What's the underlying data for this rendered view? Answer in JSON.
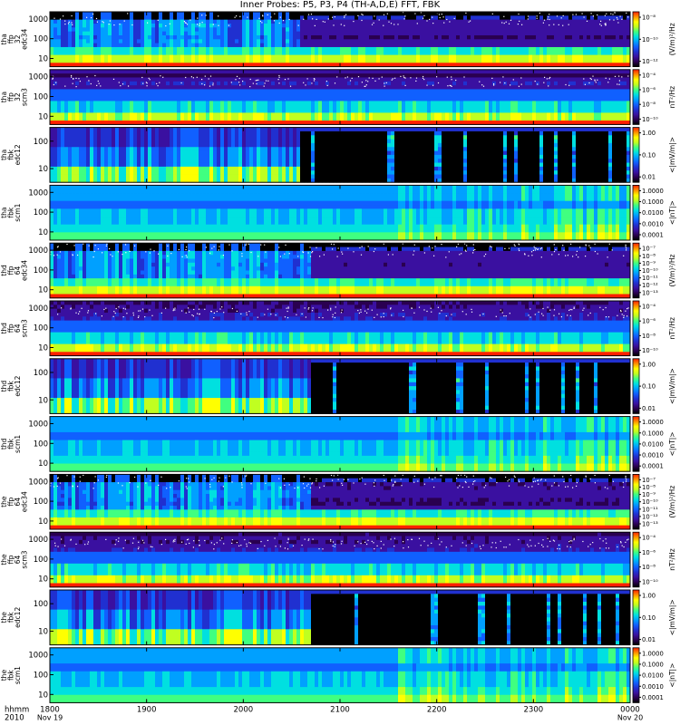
{
  "chart_data": {
    "type": "heatmap",
    "title": "Inner Probes: P5, P3, P4 (TH-A,D,E) FFT, FBK",
    "x_axis": {
      "label_line1": "hhmm",
      "label_line2": "2010",
      "range": [
        "1800",
        "0000"
      ],
      "ticks": [
        {
          "value": 0,
          "label": "1800",
          "sublabel": "Nov 19"
        },
        {
          "value": 1,
          "label": "1900",
          "sublabel": ""
        },
        {
          "value": 2,
          "label": "2000",
          "sublabel": ""
        },
        {
          "value": 3,
          "label": "2100",
          "sublabel": ""
        },
        {
          "value": 4,
          "label": "2200",
          "sublabel": ""
        },
        {
          "value": 5,
          "label": "2300",
          "sublabel": ""
        },
        {
          "value": 6,
          "label": "0000",
          "sublabel": "Nov 20"
        }
      ]
    },
    "colormap": [
      "#000000",
      "#2a0050",
      "#3a10a0",
      "#2030d0",
      "#1060ff",
      "#00a0ff",
      "#00e0e0",
      "#40ff80",
      "#c0ff20",
      "#ffff00",
      "#ff9000",
      "#ff2000"
    ],
    "panels": [
      {
        "probe": "tha",
        "ylabel": [
          "tha",
          "ffp",
          "32",
          "edc34"
        ],
        "yticks": [
          "10",
          "100",
          "1000"
        ],
        "cbar_unit": "(V/m)²/Hz",
        "cbar_ticks": [
          "10⁻⁸",
          "10⁻¹⁰",
          "10⁻¹²"
        ],
        "kind": "ffp_e",
        "quiet_from": 2.6,
        "dense": 1.0
      },
      {
        "probe": "tha",
        "ylabel": [
          "tha",
          "ffp",
          "32",
          "scm3"
        ],
        "yticks": [
          "10",
          "100",
          "1000"
        ],
        "cbar_unit": "nT²/Hz",
        "cbar_ticks": [
          "10⁻⁴",
          "10⁻⁶",
          "10⁻⁸",
          "10⁻¹⁰"
        ],
        "kind": "ffp_b",
        "quiet_from": 2.6,
        "dense": 0.6
      },
      {
        "probe": "tha",
        "ylabel": [
          "tha",
          "fbk",
          "edc12"
        ],
        "yticks": [
          "10",
          "100"
        ],
        "cbar_unit": "<|mV/m|>",
        "cbar_ticks": [
          "1.00",
          "0.10",
          "0.01"
        ],
        "kind": "fbk_e",
        "quiet_from": 2.6,
        "dense": 1.0
      },
      {
        "probe": "tha",
        "ylabel": [
          "tha",
          "fbk",
          "scm1"
        ],
        "yticks": [
          "10",
          "100",
          "1000"
        ],
        "cbar_unit": "<|nT|>",
        "cbar_ticks": [
          "1.0000",
          "0.1000",
          "0.0100",
          "0.0010",
          "0.0001"
        ],
        "kind": "fbk_b",
        "quiet_from": 3.6,
        "dense": 1.0
      },
      {
        "probe": "thd",
        "ylabel": [
          "thd",
          "ffp",
          "64",
          "edc34"
        ],
        "yticks": [
          "10",
          "100",
          "1000"
        ],
        "cbar_unit": "(V/m)²/Hz",
        "cbar_ticks": [
          "10⁻⁷",
          "10⁻⁸",
          "10⁻⁹",
          "10⁻¹⁰",
          "10⁻¹¹",
          "10⁻¹²",
          "10⁻¹³"
        ],
        "kind": "ffp_e",
        "quiet_from": 2.7,
        "dense": 1.0
      },
      {
        "probe": "thd",
        "ylabel": [
          "thd",
          "ffp",
          "64",
          "scm3"
        ],
        "yticks": [
          "10",
          "100",
          "1000"
        ],
        "cbar_unit": "nT²/Hz",
        "cbar_ticks": [
          "10⁻⁴",
          "10⁻⁶",
          "10⁻⁸",
          "10⁻¹⁰"
        ],
        "kind": "ffp_b",
        "quiet_from": 2.7,
        "dense": 1.0
      },
      {
        "probe": "thd",
        "ylabel": [
          "thd",
          "fbk",
          "edc12"
        ],
        "yticks": [
          "10",
          "100"
        ],
        "cbar_unit": "<|mV/m|>",
        "cbar_ticks": [
          "1.00",
          "0.10",
          "0.01"
        ],
        "kind": "fbk_e",
        "quiet_from": 2.7,
        "dense": 1.0
      },
      {
        "probe": "thd",
        "ylabel": [
          "thd",
          "fbk",
          "scm1"
        ],
        "yticks": [
          "10",
          "100",
          "1000"
        ],
        "cbar_unit": "<|nT|>",
        "cbar_ticks": [
          "1.0000",
          "0.1000",
          "0.0100",
          "0.0010",
          "0.0001"
        ],
        "kind": "fbk_b",
        "quiet_from": 3.6,
        "dense": 1.0
      },
      {
        "probe": "the",
        "ylabel": [
          "the",
          "ffp",
          "64",
          "edc34"
        ],
        "yticks": [
          "10",
          "100",
          "1000"
        ],
        "cbar_unit": "(V/m)²/Hz",
        "cbar_ticks": [
          "10⁻⁷",
          "10⁻⁸",
          "10⁻⁹",
          "10⁻¹⁰",
          "10⁻¹¹",
          "10⁻¹²",
          "10⁻¹³"
        ],
        "kind": "ffp_e",
        "quiet_from": 2.7,
        "dense": 1.0
      },
      {
        "probe": "the",
        "ylabel": [
          "the",
          "ffp",
          "64",
          "scm3"
        ],
        "yticks": [
          "10",
          "100",
          "1000"
        ],
        "cbar_unit": "nT²/Hz",
        "cbar_ticks": [
          "10⁻⁴",
          "10⁻⁶",
          "10⁻⁸",
          "10⁻¹⁰"
        ],
        "kind": "ffp_b",
        "quiet_from": 2.7,
        "dense": 1.0
      },
      {
        "probe": "the",
        "ylabel": [
          "the",
          "fbk",
          "edc12"
        ],
        "yticks": [
          "10",
          "100"
        ],
        "cbar_unit": "<|mV/m|>",
        "cbar_ticks": [
          "1.00",
          "0.10",
          "0.01"
        ],
        "kind": "fbk_e",
        "quiet_from": 2.7,
        "dense": 1.0
      },
      {
        "probe": "the",
        "ylabel": [
          "the",
          "fbk",
          "scm1"
        ],
        "yticks": [
          "10",
          "100",
          "1000"
        ],
        "cbar_unit": "<|nT|>",
        "cbar_ticks": [
          "1.0000",
          "0.1000",
          "0.0100",
          "0.0010",
          "0.0001"
        ],
        "kind": "fbk_b",
        "quiet_from": 3.6,
        "dense": 1.0
      }
    ]
  }
}
